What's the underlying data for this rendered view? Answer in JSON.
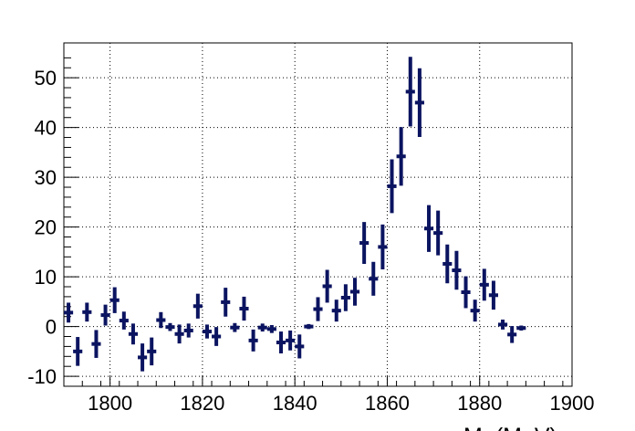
{
  "chart_data": {
    "type": "scatter",
    "title": "",
    "xlabel": "M",
    "xlabel_unit": "(MeV)",
    "ylabel": "",
    "xlim": [
      1790,
      1900
    ],
    "ylim": [
      -12,
      57
    ],
    "x_ticks": [
      1800,
      1820,
      1840,
      1860,
      1880,
      1900
    ],
    "x_tick_labels": [
      "1800",
      "1820",
      "1840",
      "1860",
      "1880",
      "1900"
    ],
    "y_ticks": [
      -10,
      0,
      10,
      20,
      30,
      40,
      50
    ],
    "y_tick_labels": [
      "-10",
      "0",
      "10",
      "20",
      "30",
      "40",
      "50"
    ],
    "grid": true,
    "marker_color": "#0b1460",
    "bin_half_width": 1,
    "series": [
      {
        "x": [
          1791,
          1793,
          1795,
          1797,
          1799,
          1801,
          1803,
          1805,
          1807,
          1809,
          1811,
          1813,
          1815,
          1817,
          1819,
          1821,
          1823,
          1825,
          1827,
          1829,
          1831,
          1833,
          1835,
          1837,
          1839,
          1841,
          1843,
          1845,
          1847,
          1849,
          1851,
          1853,
          1855,
          1857,
          1859,
          1861,
          1863,
          1865,
          1867,
          1869,
          1871,
          1873,
          1875,
          1877,
          1879,
          1881,
          1883,
          1885,
          1887,
          1889
        ],
        "y": [
          2.8,
          -5.0,
          2.9,
          -3.5,
          2.3,
          5.3,
          1.2,
          -1.5,
          -6.2,
          -5.0,
          1.3,
          -0.1,
          -1.5,
          -0.8,
          4.1,
          -1.0,
          -2.0,
          4.9,
          -0.2,
          3.6,
          -2.8,
          -0.2,
          -0.5,
          -3.2,
          -2.8,
          -4.0,
          0.0,
          3.5,
          8.1,
          3.2,
          5.8,
          7.0,
          16.8,
          9.6,
          16.0,
          28.2,
          34.2,
          47.2,
          45.0,
          19.7,
          18.8,
          12.6,
          11.3,
          6.9,
          3.2,
          8.4,
          6.3,
          0.4,
          -1.6,
          -0.3
        ],
        "yerr": [
          2.0,
          2.9,
          1.9,
          2.8,
          2.1,
          2.6,
          1.8,
          2.1,
          2.8,
          2.8,
          1.6,
          0.8,
          1.9,
          1.4,
          2.5,
          1.4,
          1.9,
          2.9,
          0.9,
          2.4,
          2.2,
          0.8,
          0.8,
          2.2,
          2.0,
          2.4,
          0.5,
          2.4,
          3.3,
          2.2,
          2.7,
          2.8,
          4.2,
          3.4,
          4.5,
          5.4,
          5.9,
          7.0,
          6.9,
          4.7,
          4.5,
          3.9,
          3.9,
          3.2,
          2.2,
          3.2,
          2.9,
          1.0,
          1.7,
          0.5
        ]
      }
    ]
  }
}
